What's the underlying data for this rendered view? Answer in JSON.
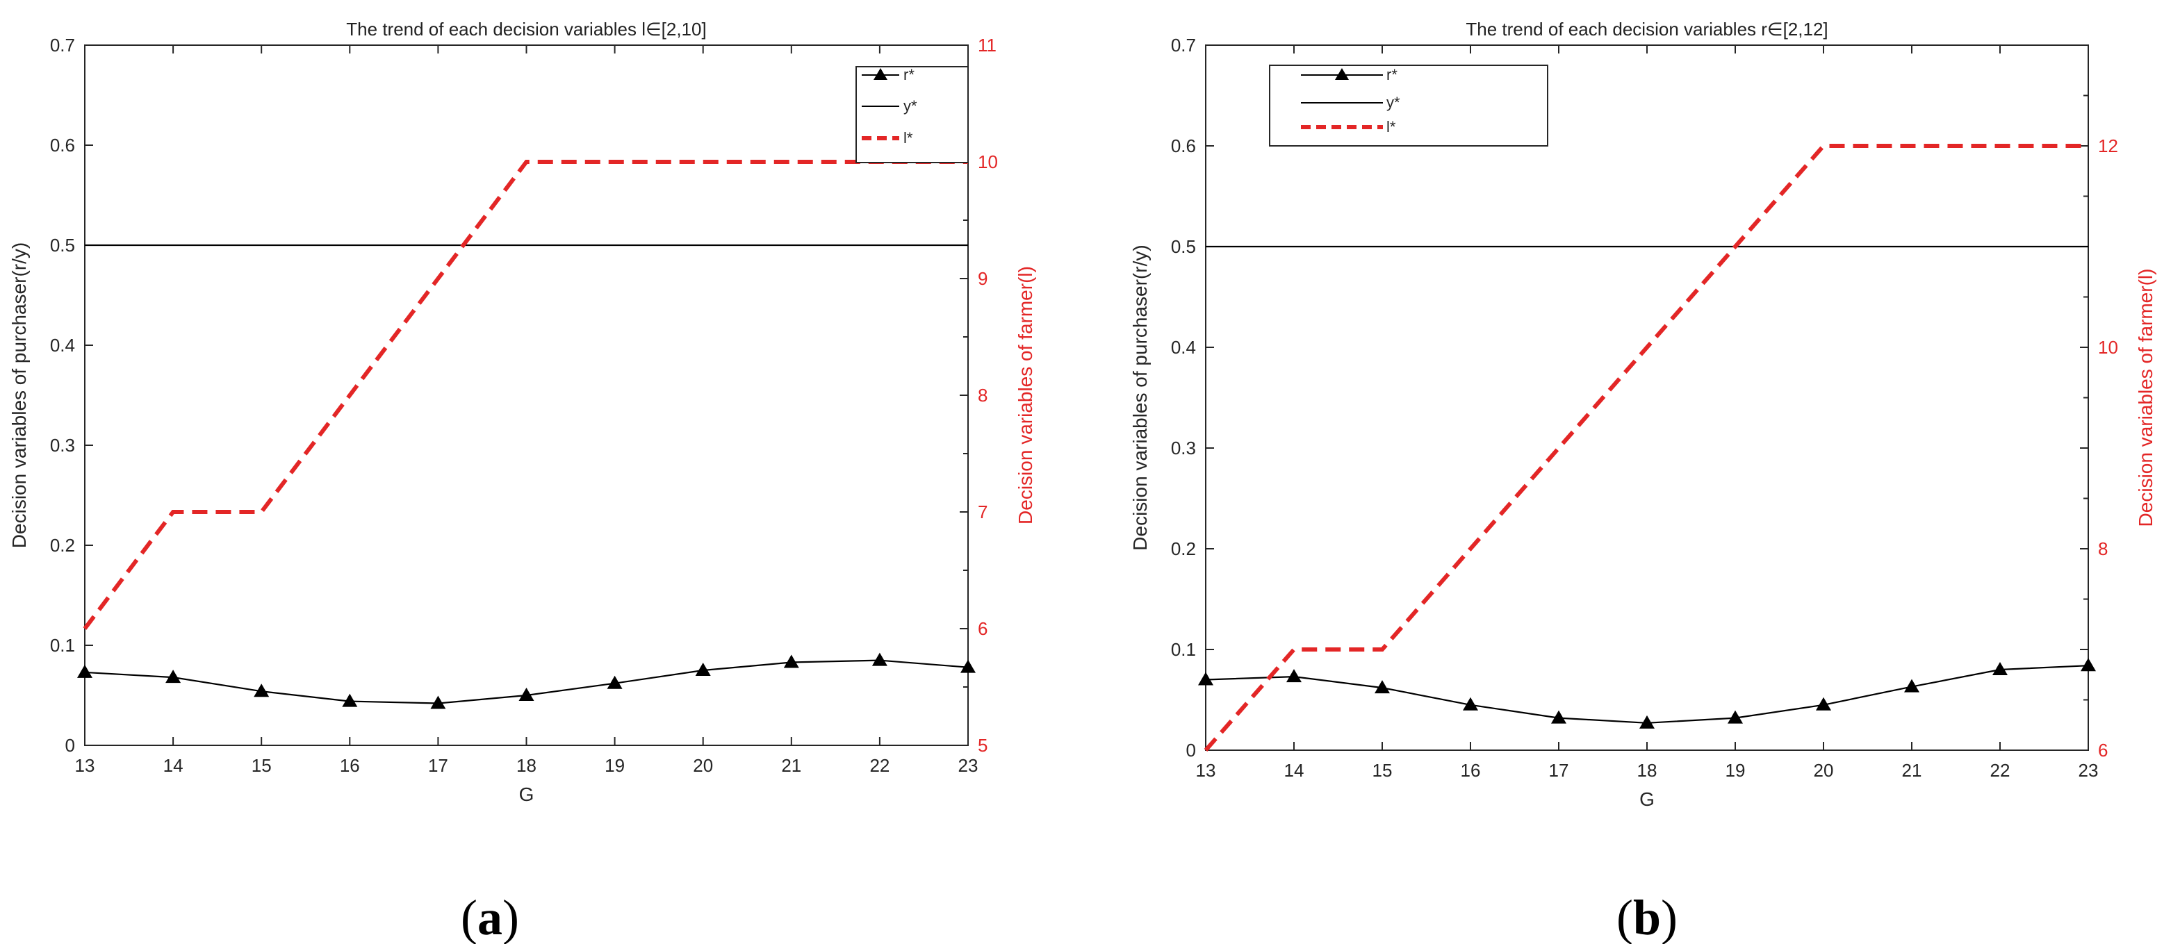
{
  "chart_data": [
    {
      "type": "line",
      "title": "The trend of each decision variables l∈[2,10]",
      "xlabel": "G",
      "ylabel": "Decision variables of purchaser(r/y)",
      "ylabel_right": "Decision variables of farmer(l)",
      "x": [
        13,
        14,
        15,
        16,
        17,
        18,
        19,
        20,
        21,
        22,
        23
      ],
      "xlim": [
        13,
        23
      ],
      "xticks": [
        "13",
        "14",
        "15",
        "16",
        "17",
        "18",
        "19",
        "20",
        "21",
        "22",
        "23"
      ],
      "ylim": [
        0,
        0.7
      ],
      "yticks": [
        "0",
        "0.1",
        "0.2",
        "0.3",
        "0.4",
        "0.5",
        "0.6",
        "0.7"
      ],
      "ylim_right": [
        5,
        11
      ],
      "yticks_right": [
        "5",
        "6",
        "7",
        "8",
        "9",
        "10",
        "11"
      ],
      "legend_position": "top-right",
      "caption": "(a)",
      "caption_letter": "a",
      "series": [
        {
          "name": "r*",
          "axis": "left",
          "style": "solid-triangle",
          "color": "#000000",
          "values": [
            0.073,
            0.068,
            0.054,
            0.044,
            0.042,
            0.05,
            0.062,
            0.075,
            0.083,
            0.085,
            0.078
          ]
        },
        {
          "name": "y*",
          "axis": "left",
          "style": "solid",
          "color": "#000000",
          "values": [
            0.5,
            0.5,
            0.5,
            0.5,
            0.5,
            0.5,
            0.5,
            0.5,
            0.5,
            0.5,
            0.5
          ]
        },
        {
          "name": "l*",
          "axis": "right",
          "style": "dashed",
          "color": "#e32626",
          "values": [
            6,
            7,
            7,
            8,
            9,
            10,
            10,
            10,
            10,
            10,
            10
          ]
        }
      ]
    },
    {
      "type": "line",
      "title": "The trend of each decision variables r∈[2,12]",
      "xlabel": "G",
      "ylabel": "Decision variables of purchaser(r/y)",
      "ylabel_right": "Decision variables of farmer(l)",
      "x": [
        13,
        14,
        15,
        16,
        17,
        18,
        19,
        20,
        21,
        22,
        23
      ],
      "xlim": [
        13,
        23
      ],
      "xticks": [
        "13",
        "14",
        "15",
        "16",
        "17",
        "18",
        "19",
        "20",
        "21",
        "22",
        "23"
      ],
      "ylim": [
        0,
        0.7
      ],
      "yticks": [
        "0",
        "0.1",
        "0.2",
        "0.3",
        "0.4",
        "0.5",
        "0.6",
        "0.7"
      ],
      "ylim_right": [
        6,
        13
      ],
      "yticks_right": [
        "6",
        "8",
        "10",
        "12"
      ],
      "legend_position": "top-left",
      "caption": "(b)",
      "caption_letter": "b",
      "series": [
        {
          "name": "r*",
          "axis": "left",
          "style": "solid-triangle",
          "color": "#000000",
          "values": [
            0.07,
            0.073,
            0.062,
            0.045,
            0.032,
            0.027,
            0.032,
            0.045,
            0.063,
            0.08,
            0.084
          ]
        },
        {
          "name": "y*",
          "axis": "left",
          "style": "solid",
          "color": "#000000",
          "values": [
            0.5,
            0.5,
            0.5,
            0.5,
            0.5,
            0.5,
            0.5,
            0.5,
            0.5,
            0.5,
            0.5
          ]
        },
        {
          "name": "l*",
          "axis": "right",
          "style": "dashed",
          "color": "#e32626",
          "values": [
            6,
            7,
            7,
            8,
            9,
            10,
            11,
            12,
            12,
            12,
            12
          ]
        }
      ]
    }
  ]
}
